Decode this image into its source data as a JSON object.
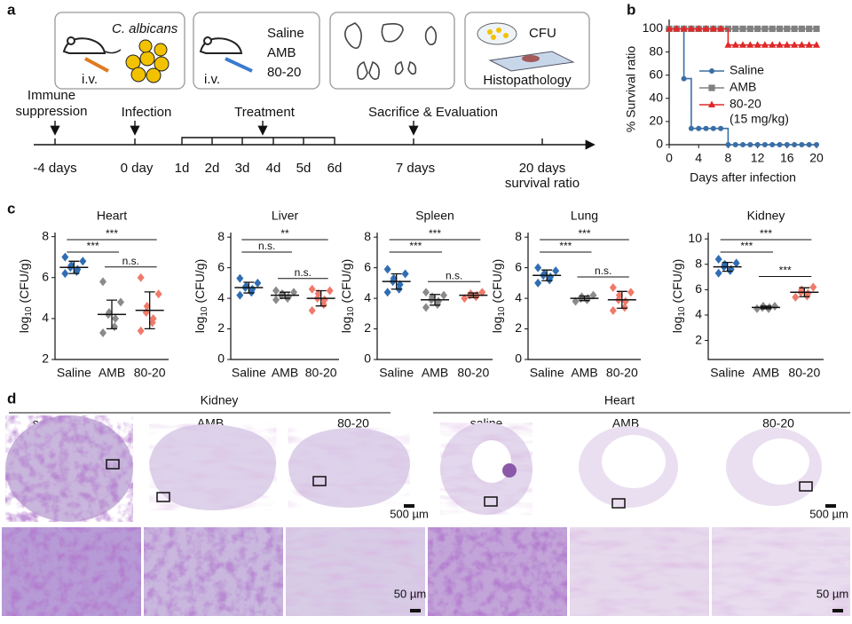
{
  "panel_labels": [
    "a",
    "b",
    "c",
    "d"
  ],
  "panel_a": {
    "organism": "C. albicans",
    "route": [
      "i.v.",
      "i.v."
    ],
    "treatments": [
      "Saline",
      "AMB",
      "80-20"
    ],
    "evaluation": [
      "CFU",
      "Histopathology"
    ],
    "events": [
      "Immune",
      "suppression",
      "Infection",
      "Treatment",
      "Sacrifice & Evaluation"
    ],
    "timeline": [
      "-4 days",
      "0 day",
      "1d",
      "2d",
      "3d",
      "4d",
      "5d",
      "6d",
      "7 days",
      "20 days",
      "survival ratio"
    ]
  },
  "chart_data": [
    {
      "type": "line",
      "step": true,
      "xlabel": "Days after infection",
      "ylabel": "% Survival ratio",
      "x": [
        0,
        1,
        2,
        3,
        4,
        5,
        6,
        7,
        8,
        9,
        10,
        11,
        12,
        13,
        14,
        15,
        16,
        17,
        18,
        19,
        20
      ],
      "xlim": [
        0,
        20
      ],
      "xticks": [
        0,
        4,
        8,
        12,
        16,
        20
      ],
      "ylim": [
        0,
        108
      ],
      "yticks": [
        0,
        20,
        40,
        60,
        80,
        100
      ],
      "legend_note": "(15 mg/kg)",
      "series": [
        {
          "name": "Saline",
          "color": "#3a6ea5",
          "marker": "circle",
          "values": [
            100,
            100,
            57,
            14,
            14,
            14,
            14,
            14,
            0,
            0,
            0,
            0,
            0,
            0,
            0,
            0,
            0,
            0,
            0,
            0,
            0
          ]
        },
        {
          "name": "AMB",
          "color": "#808080",
          "marker": "square",
          "values": [
            100,
            100,
            100,
            100,
            100,
            100,
            100,
            100,
            100,
            100,
            100,
            100,
            100,
            100,
            100,
            100,
            100,
            100,
            100,
            100,
            100
          ]
        },
        {
          "name": "80-20",
          "color": "#e02828",
          "marker": "triangle",
          "values": [
            100,
            100,
            100,
            100,
            100,
            100,
            100,
            100,
            86,
            86,
            86,
            86,
            86,
            86,
            86,
            86,
            86,
            86,
            86,
            86,
            86
          ]
        }
      ]
    },
    {
      "type": "dot",
      "title": "Heart",
      "ylabel": [
        "log",
        "10",
        " (CFU/g)"
      ],
      "categories": [
        "Saline",
        "AMB",
        "80-20"
      ],
      "colors": [
        "#2f6db3",
        "#8a8a8a",
        "#f07a6a"
      ],
      "ylim": [
        2,
        8.2
      ],
      "yticks": [
        2,
        4,
        6,
        8
      ],
      "groups": [
        {
          "values": [
            6.2,
            6.3,
            6.4,
            6.5,
            6.6,
            6.8,
            7.0
          ],
          "mean": 6.5,
          "sd": 0.3
        },
        {
          "values": [
            3.3,
            3.6,
            4.0,
            4.2,
            4.3,
            4.8,
            5.8
          ],
          "mean": 4.2,
          "sd": 0.7
        },
        {
          "values": [
            3.4,
            3.8,
            4.0,
            4.3,
            4.6,
            5.2,
            6.0
          ],
          "mean": 4.4,
          "sd": 0.9
        }
      ],
      "brackets": [
        {
          "from": 0,
          "to": 1,
          "label": "***"
        },
        {
          "from": 0,
          "to": 2,
          "label": "***"
        },
        {
          "from": 1,
          "to": 2,
          "label": "n.s."
        }
      ]
    },
    {
      "type": "dot",
      "title": "Liver",
      "ylabel": [
        "log",
        "10",
        " (CFU/g)"
      ],
      "categories": [
        "Saline",
        "AMB",
        "80-20"
      ],
      "colors": [
        "#2f6db3",
        "#8a8a8a",
        "#f07a6a"
      ],
      "ylim": [
        0,
        8.3
      ],
      "yticks": [
        0,
        2,
        4,
        6,
        8
      ],
      "groups": [
        {
          "values": [
            4.2,
            4.4,
            4.6,
            4.7,
            4.8,
            5.0,
            5.3
          ],
          "mean": 4.7,
          "sd": 0.35
        },
        {
          "values": [
            3.9,
            4.0,
            4.1,
            4.2,
            4.3,
            4.4,
            4.5
          ],
          "mean": 4.2,
          "sd": 0.2
        },
        {
          "values": [
            3.2,
            3.6,
            3.9,
            4.0,
            4.3,
            4.5,
            4.6
          ],
          "mean": 4.0,
          "sd": 0.5
        }
      ],
      "brackets": [
        {
          "from": 0,
          "to": 1,
          "label": "n.s."
        },
        {
          "from": 0,
          "to": 2,
          "label": "**"
        },
        {
          "from": 1,
          "to": 2,
          "label": "n.s."
        }
      ]
    },
    {
      "type": "dot",
      "title": "Spleen",
      "ylabel": [
        "log",
        "10",
        " (CFU/g)"
      ],
      "categories": [
        "Saline",
        "AMB",
        "80-20"
      ],
      "colors": [
        "#2f6db3",
        "#8a8a8a",
        "#f07a6a"
      ],
      "ylim": [
        0,
        8.3
      ],
      "yticks": [
        0,
        2,
        4,
        6,
        8
      ],
      "groups": [
        {
          "values": [
            4.4,
            4.6,
            4.9,
            5.1,
            5.3,
            5.6,
            5.9
          ],
          "mean": 5.1,
          "sd": 0.5
        },
        {
          "values": [
            3.4,
            3.6,
            3.8,
            3.9,
            4.1,
            4.2,
            4.4
          ],
          "mean": 3.9,
          "sd": 0.35
        },
        {
          "values": [
            4.0,
            4.1,
            4.2,
            4.2,
            4.3,
            4.4
          ],
          "mean": 4.2,
          "sd": 0.15
        }
      ],
      "brackets": [
        {
          "from": 0,
          "to": 1,
          "label": "***"
        },
        {
          "from": 0,
          "to": 2,
          "label": "***"
        },
        {
          "from": 1,
          "to": 2,
          "label": "n.s."
        }
      ]
    },
    {
      "type": "dot",
      "title": "Lung",
      "ylabel": [
        "log",
        "10",
        " (CFU/g)"
      ],
      "categories": [
        "Saline",
        "AMB",
        "80-20"
      ],
      "colors": [
        "#2f6db3",
        "#8a8a8a",
        "#f07a6a"
      ],
      "ylim": [
        0,
        8.3
      ],
      "yticks": [
        0,
        2,
        4,
        6,
        8
      ],
      "groups": [
        {
          "values": [
            5.0,
            5.2,
            5.4,
            5.5,
            5.6,
            5.8,
            6.0
          ],
          "mean": 5.5,
          "sd": 0.35
        },
        {
          "values": [
            3.8,
            3.9,
            4.0,
            4.0,
            4.1,
            4.2
          ],
          "mean": 4.0,
          "sd": 0.15
        },
        {
          "values": [
            3.2,
            3.4,
            3.8,
            3.9,
            4.2,
            4.4,
            4.7
          ],
          "mean": 3.9,
          "sd": 0.55
        }
      ],
      "brackets": [
        {
          "from": 0,
          "to": 1,
          "label": "***"
        },
        {
          "from": 0,
          "to": 2,
          "label": "***"
        },
        {
          "from": 1,
          "to": 2,
          "label": "n.s."
        }
      ]
    },
    {
      "type": "dot",
      "title": "Kidney",
      "ylabel": [
        "log",
        "10",
        " (CFU/g)"
      ],
      "categories": [
        "Saline",
        "AMB",
        "80-20"
      ],
      "colors": [
        "#2f6db3",
        "#8a8a8a",
        "#f07a6a"
      ],
      "ylim": [
        0.5,
        10.5
      ],
      "yticks": [
        2,
        4,
        6,
        8,
        10
      ],
      "groups": [
        {
          "values": [
            7.3,
            7.5,
            7.6,
            7.8,
            8.0,
            8.1,
            8.4
          ],
          "mean": 7.8,
          "sd": 0.35
        },
        {
          "values": [
            4.5,
            4.5,
            4.6,
            4.6,
            4.7,
            4.7
          ],
          "mean": 4.6,
          "sd": 0.1
        },
        {
          "values": [
            5.4,
            5.5,
            5.7,
            5.8,
            6.0,
            6.2
          ],
          "mean": 5.8,
          "sd": 0.35
        }
      ],
      "brackets": [
        {
          "from": 0,
          "to": 1,
          "label": "***"
        },
        {
          "from": 0,
          "to": 2,
          "label": "***"
        },
        {
          "from": 1,
          "to": 2,
          "label": "***"
        }
      ]
    }
  ],
  "panel_d": {
    "groups": [
      "Kidney",
      "Heart"
    ],
    "columns": [
      "saline",
      "AMB",
      "80-20",
      "saline",
      "AMB",
      "80-20"
    ],
    "scale_bars": [
      "500 µm",
      "500 µm",
      "50 µm",
      "50 µm"
    ]
  }
}
